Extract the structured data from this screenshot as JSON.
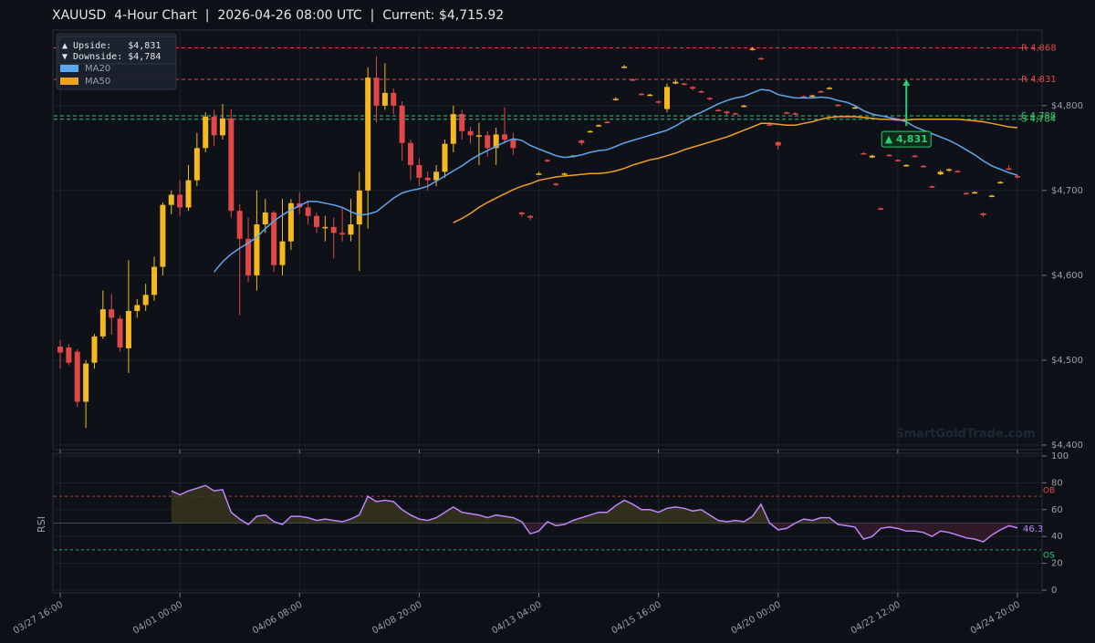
{
  "chart_data": [
    {
      "type": "candlestick",
      "title": "XAUUSD  4-Hour Chart  |  2026-04-26 08:00 UTC  |  Current: $4,715.92",
      "categories": [
        "03/27 16:00",
        null,
        null,
        null,
        null,
        null,
        null,
        null,
        null,
        null,
        null,
        null,
        null,
        null,
        "04/01 00:00",
        null,
        null,
        null,
        null,
        null,
        null,
        null,
        null,
        null,
        null,
        null,
        null,
        null,
        "04/06 08:00",
        null,
        null,
        null,
        null,
        null,
        null,
        null,
        null,
        null,
        null,
        null,
        null,
        null,
        "04/08 20:00",
        null,
        null,
        null,
        null,
        null,
        null,
        null,
        null,
        null,
        null,
        null,
        null,
        null,
        "04/13 04:00",
        null,
        null,
        null,
        null,
        null,
        null,
        null,
        null,
        null,
        null,
        null,
        null,
        null,
        "04/15 16:00",
        null,
        null,
        null,
        null,
        null,
        null,
        null,
        null,
        null,
        null,
        null,
        null,
        null,
        "04/20 00:00",
        null,
        null,
        null,
        null,
        null,
        null,
        null,
        null,
        null,
        null,
        null,
        null,
        null,
        "04/22 12:00",
        null,
        null,
        null,
        null,
        null,
        null,
        null,
        null,
        null,
        null,
        null,
        null,
        null,
        "04/24 20:00"
      ],
      "open": [
        4516,
        4515,
        4510,
        4451,
        4497,
        4528,
        4560,
        4549,
        4514,
        4558,
        4565,
        4577,
        4610,
        4683,
        4695,
        4680,
        4712,
        4750,
        4787,
        4765,
        4785,
        4676,
        4643,
        4600,
        4660,
        4674,
        4612,
        4640,
        4685,
        4680,
        4670,
        4657,
        4657,
        4650,
        4648,
        4660,
        4700,
        4833,
        4800,
        4815,
        4800,
        4756,
        4730,
        4715,
        4712,
        4722,
        4755,
        4790,
        4770,
        4765,
        4765,
        4750,
        4766,
        4760,
        4674,
        4670,
        4719,
        4736,
        4708,
        4719,
        4740,
        4759,
        4769,
        4776,
        4781,
        4807,
        4845,
        4831,
        4814,
        4812,
        4805,
        4796,
        4826,
        4826,
        4822,
        4817,
        4809,
        4795,
        4793,
        4791,
        4799,
        4866,
        4856,
        4778,
        4757,
        4792,
        4791,
        4811,
        4811,
        4817,
        4820,
        4801,
        4788,
        4797,
        4744,
        4739,
        4679,
        4742,
        4736,
        4729,
        4741,
        4729,
        4705,
        4719,
        4724,
        4723,
        4697,
        4697,
        4673,
        4693,
        4709,
        4726,
        4717
      ],
      "high": [
        4524,
        4519,
        4513,
        4500,
        4531,
        4582,
        4578,
        4553,
        4618,
        4572,
        4590,
        4622,
        4686,
        4700,
        4712,
        4730,
        4768,
        4792,
        4795,
        4802,
        4796,
        4684,
        4668,
        4700,
        4690,
        4676,
        4690,
        4690,
        4698,
        4688,
        4674,
        4670,
        4668,
        4680,
        4690,
        4722,
        4845,
        4858,
        4850,
        4820,
        4805,
        4760,
        4738,
        4722,
        4730,
        4760,
        4800,
        4795,
        4775,
        4780,
        4770,
        4774,
        4798,
        4768,
        4675,
        4671,
        4722,
        4737,
        4709,
        4721,
        4742,
        4760,
        4771,
        4778,
        4782,
        4810,
        4848,
        4832,
        4815,
        4814,
        4806,
        4826,
        4830,
        4827,
        4823,
        4818,
        4810,
        4796,
        4794,
        4792,
        4801,
        4869,
        4857,
        4779,
        4758,
        4793,
        4792,
        4812,
        4813,
        4818,
        4822,
        4802,
        4789,
        4799,
        4745,
        4742,
        4680,
        4743,
        4737,
        4731,
        4742,
        4730,
        4706,
        4724,
        4726,
        4724,
        4698,
        4699,
        4674,
        4695,
        4711,
        4730,
        4718
      ],
      "low": [
        4490,
        4494,
        4445,
        4420,
        4490,
        4525,
        4530,
        4510,
        4485,
        4550,
        4558,
        4570,
        4600,
        4672,
        4670,
        4676,
        4705,
        4745,
        4752,
        4760,
        4668,
        4553,
        4592,
        4582,
        4650,
        4604,
        4600,
        4630,
        4672,
        4660,
        4650,
        4640,
        4620,
        4640,
        4640,
        4605,
        4655,
        4780,
        4795,
        4790,
        4735,
        4712,
        4705,
        4700,
        4705,
        4715,
        4745,
        4760,
        4755,
        4730,
        4740,
        4730,
        4755,
        4742,
        4669,
        4665,
        4718,
        4733,
        4705,
        4718,
        4739,
        4753,
        4768,
        4775,
        4779,
        4806,
        4844,
        4829,
        4812,
        4811,
        4802,
        4792,
        4825,
        4824,
        4818,
        4815,
        4806,
        4793,
        4789,
        4789,
        4798,
        4865,
        4854,
        4776,
        4748,
        4790,
        4789,
        4809,
        4810,
        4815,
        4819,
        4799,
        4786,
        4796,
        4742,
        4738,
        4677,
        4740,
        4734,
        4728,
        4739,
        4727,
        4703,
        4718,
        4722,
        4721,
        4695,
        4696,
        4669,
        4692,
        4708,
        4724,
        4714
      ],
      "close": [
        4509,
        4497,
        4451,
        4496,
        4528,
        4560,
        4550,
        4515,
        4558,
        4565,
        4577,
        4610,
        4683,
        4695,
        4680,
        4712,
        4750,
        4787,
        4765,
        4785,
        4676,
        4643,
        4600,
        4660,
        4674,
        4612,
        4640,
        4685,
        4680,
        4670,
        4657,
        4657,
        4650,
        4648,
        4660,
        4700,
        4833,
        4800,
        4815,
        4800,
        4756,
        4730,
        4715,
        4712,
        4722,
        4755,
        4790,
        4770,
        4765,
        4765,
        4750,
        4766,
        4760,
        4750,
        4672,
        4668,
        4720,
        4735,
        4707,
        4720,
        4741,
        4756,
        4770,
        4777,
        4780,
        4808,
        4846,
        4830,
        4813,
        4813,
        4804,
        4822,
        4828,
        4825,
        4820,
        4816,
        4808,
        4794,
        4791,
        4790,
        4800,
        4867,
        4855,
        4777,
        4753,
        4791,
        4790,
        4810,
        4812,
        4816,
        4821,
        4800,
        4787,
        4798,
        4743,
        4741,
        4678,
        4741,
        4735,
        4730,
        4740,
        4728,
        4704,
        4722,
        4725,
        4722,
        4696,
        4698,
        4671,
        4694,
        4710,
        4725,
        4715.92
      ],
      "up_color": "#f5b820",
      "down_color": "#e04848",
      "series": [
        {
          "name": "MA20",
          "color": "#5ca8f0",
          "values": [
            null,
            null,
            null,
            null,
            null,
            null,
            null,
            null,
            null,
            null,
            null,
            null,
            null,
            null,
            null,
            null,
            null,
            null,
            4604,
            4616,
            4625,
            4632,
            4638,
            4645,
            4655,
            4664,
            4671,
            4677,
            4682,
            4687,
            4687,
            4685,
            4683,
            4680,
            4675,
            4671,
            4672,
            4675,
            4683,
            4691,
            4697,
            4700,
            4702,
            4705,
            4711,
            4717,
            4723,
            4729,
            4736,
            4742,
            4747,
            4752,
            4757,
            4761,
            4759,
            4753,
            4749,
            4745,
            4741,
            4739,
            4740,
            4742,
            4745,
            4747,
            4748,
            4752,
            4756,
            4759,
            4762,
            4765,
            4768,
            4771,
            4776,
            4782,
            4788,
            4792,
            4797,
            4802,
            4806,
            4809,
            4811,
            4815,
            4819,
            4818,
            4813,
            4811,
            4809,
            4809,
            4809,
            4810,
            4809,
            4806,
            4804,
            4800,
            4794,
            4790,
            4788,
            4786,
            4784,
            4781,
            4775,
            4771,
            4767,
            4763,
            4759,
            4754,
            4748,
            4742,
            4735,
            4729,
            4725,
            4721,
            4718
          ]
        },
        {
          "name": "MA50",
          "color": "#f0a020",
          "values": [
            null,
            null,
            null,
            null,
            null,
            null,
            null,
            null,
            null,
            null,
            null,
            null,
            null,
            null,
            null,
            null,
            null,
            null,
            null,
            null,
            null,
            null,
            null,
            null,
            null,
            null,
            null,
            null,
            null,
            null,
            null,
            null,
            null,
            null,
            null,
            null,
            null,
            null,
            null,
            null,
            null,
            null,
            null,
            null,
            null,
            null,
            4662,
            4667,
            4673,
            4680,
            4686,
            4691,
            4696,
            4701,
            4705,
            4708,
            4712,
            4714,
            4716,
            4717,
            4718,
            4719,
            4720,
            4720,
            4721,
            4723,
            4726,
            4730,
            4733,
            4736,
            4738,
            4741,
            4744,
            4748,
            4751,
            4754,
            4757,
            4760,
            4763,
            4767,
            4771,
            4775,
            4779,
            4779,
            4778,
            4777,
            4777,
            4779,
            4781,
            4784,
            4786,
            4787,
            4787,
            4787,
            4786,
            4785,
            4784,
            4784,
            4783,
            4783,
            4784,
            4784,
            4784,
            4784,
            4784,
            4784,
            4783,
            4782,
            4781,
            4779,
            4777,
            4775,
            4774
          ]
        }
      ],
      "ylim": [
        4395,
        4889
      ],
      "yticks": [
        {
          "value": 4400,
          "label": "$4,400"
        },
        {
          "value": 4500,
          "label": "$4,500"
        },
        {
          "value": 4600,
          "label": "$4,600"
        },
        {
          "value": 4700,
          "label": "$4,700"
        },
        {
          "value": 4800,
          "label": "$4,800"
        }
      ],
      "grid": true,
      "levels": [
        {
          "label": "R 4,868",
          "value": 4868,
          "color": "#e04848"
        },
        {
          "label": "R 4,831",
          "value": 4831,
          "color": "#e04848"
        },
        {
          "label": "S 4,788",
          "value": 4788,
          "color": "#2ecc71"
        },
        {
          "label": "S 4,784",
          "value": 4784,
          "color": "#2ecc71"
        }
      ],
      "legend_notes": [
        "▲ Upside:   $4,831",
        "▼ Downside: $4,784"
      ],
      "annotation": {
        "text": "▲ 4,831",
        "value": 4831,
        "start": 4776,
        "index": 99,
        "color": "#2ecc71"
      },
      "watermark": "SmartGoldTrade.com"
    },
    {
      "type": "line",
      "ylabel": "RSI",
      "series": [
        {
          "color": "#c084fc",
          "values": [
            null,
            null,
            null,
            null,
            null,
            null,
            null,
            null,
            null,
            null,
            null,
            null,
            null,
            74,
            71,
            74,
            76,
            78,
            74,
            75,
            58,
            53,
            49,
            55,
            56,
            51,
            49,
            55,
            55,
            54,
            52,
            53,
            52,
            51,
            53,
            56,
            70,
            66,
            67,
            66,
            60,
            56,
            53,
            52,
            54,
            58,
            62,
            58,
            57,
            56,
            54,
            56,
            55,
            54,
            51,
            42,
            44,
            51,
            48,
            49,
            52,
            54,
            56,
            58,
            58,
            63,
            67,
            64,
            60,
            60,
            58,
            61,
            62,
            61,
            59,
            60,
            56,
            52,
            51,
            52,
            51,
            55,
            64,
            50,
            45,
            46,
            50,
            53,
            52,
            54,
            54,
            49,
            48,
            47,
            38,
            40,
            46,
            47,
            46,
            44,
            44,
            43,
            40,
            44,
            43,
            41,
            39,
            38,
            36,
            41,
            45,
            48,
            46.3
          ]
        }
      ],
      "ylim": [
        0,
        100
      ],
      "yticks": [
        0,
        20,
        40,
        60,
        80,
        100
      ],
      "grid": true,
      "midline": 50,
      "levels": [
        {
          "label": "OB",
          "value": 70,
          "color": "#e04848"
        },
        {
          "label": "OS",
          "value": 30,
          "color": "#2ecc71"
        }
      ]
    }
  ]
}
